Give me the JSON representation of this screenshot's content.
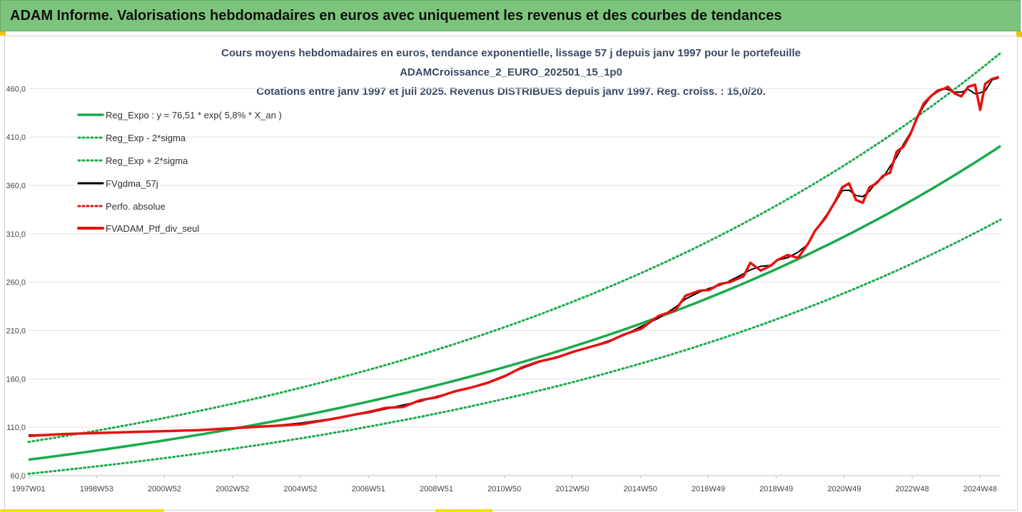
{
  "banner": {
    "title": "ADAM Informe. Valorisations hebdomadaires en euros avec uniquement les revenus et des courbes de tendances"
  },
  "chart_data": {
    "type": "line",
    "title_lines": [
      "Cours moyens hebdomadaires  en euros, tendance exponentielle, lissage 57 j depuis janv 1997 pour le portefeuille",
      "ADAMCroissance_2_EURO_202501_15_1p0",
      "Cotations  entre janv 1997 et juil 2025. Revenus DISTRIBUES depuis janv 1997. Reg. croiss. : 15,0/20."
    ],
    "x_tick_labels": [
      "1997W01",
      "1998W53",
      "2000W52",
      "2002W52",
      "2004W52",
      "2006W51",
      "2008W51",
      "2010W50",
      "2012W50",
      "2014W50",
      "2016W49",
      "2018W49",
      "2020W49",
      "2022W48",
      "2024W48"
    ],
    "y_tick_labels": [
      "60,0",
      "110,0",
      "160,0",
      "210,0",
      "260,0",
      "310,0",
      "360,0",
      "410,0",
      "460,0"
    ],
    "x_range": [
      1997.0,
      2025.55
    ],
    "ylim": [
      60,
      500
    ],
    "y_ticks": [
      60,
      110,
      160,
      210,
      260,
      310,
      360,
      410,
      460
    ],
    "grid": "horizontal",
    "legend_position": "top-left",
    "regression": {
      "a": 76.51,
      "rate": 0.058,
      "sigma_factor_low": 0.81,
      "sigma_factor_high": 1.24
    },
    "series": [
      {
        "name": "Reg_Expo : y = 76,51 * exp( 5,8% *  X_an )",
        "color": "#1aaa4a",
        "style": "solid-thick",
        "values_x": [],
        "values": []
      },
      {
        "name": "Reg_Exp - 2*sigma",
        "color": "#1aaa4a",
        "style": "dotted"
      },
      {
        "name": "Reg_Exp + 2*sigma",
        "color": "#1aaa4a",
        "style": "dotted"
      },
      {
        "name": "FVgdma_57j",
        "color": "#000000",
        "style": "solid"
      },
      {
        "name": "Perfo. absolue",
        "color": "#e81010",
        "style": "dotted"
      },
      {
        "name": "FVADAM_Ptf_div_seul",
        "color": "#e81010",
        "style": "solid-thick",
        "x": [
          1997.0,
          1998.0,
          1999.0,
          2000.0,
          2001.0,
          2002.0,
          2003.0,
          2004.0,
          2005.0,
          2006.0,
          2007.0,
          2007.5,
          2008.0,
          2008.5,
          2009.0,
          2009.5,
          2010.0,
          2010.5,
          2011.0,
          2011.5,
          2012.0,
          2012.5,
          2013.0,
          2013.5,
          2014.0,
          2014.5,
          2015.0,
          2015.5,
          2016.0,
          2016.3,
          2016.7,
          2017.0,
          2017.3,
          2017.6,
          2018.0,
          2018.2,
          2018.5,
          2018.8,
          2019.0,
          2019.3,
          2019.6,
          2019.9,
          2020.1,
          2020.4,
          2020.7,
          2020.9,
          2021.1,
          2021.3,
          2021.5,
          2021.7,
          2021.9,
          2022.1,
          2022.3,
          2022.5,
          2022.7,
          2022.9,
          2023.1,
          2023.3,
          2023.5,
          2023.7,
          2023.9,
          2024.0,
          2024.2,
          2024.4,
          2024.6,
          2024.8,
          2024.95,
          2025.1,
          2025.3,
          2025.5
        ],
        "values": [
          101,
          103,
          104,
          105,
          106,
          107,
          109,
          111,
          113,
          119,
          126,
          130,
          131,
          138,
          141,
          147,
          151,
          156,
          163,
          172,
          178,
          182,
          188,
          193,
          198,
          206,
          212,
          225,
          231,
          246,
          251,
          252,
          258,
          260,
          266,
          280,
          272,
          277,
          283,
          288,
          285,
          300,
          313,
          326,
          344,
          358,
          362,
          345,
          342,
          358,
          362,
          370,
          373,
          395,
          400,
          413,
          430,
          445,
          452,
          458,
          460,
          462,
          455,
          452,
          462,
          464,
          438,
          465,
          470,
          472
        ]
      }
    ]
  }
}
